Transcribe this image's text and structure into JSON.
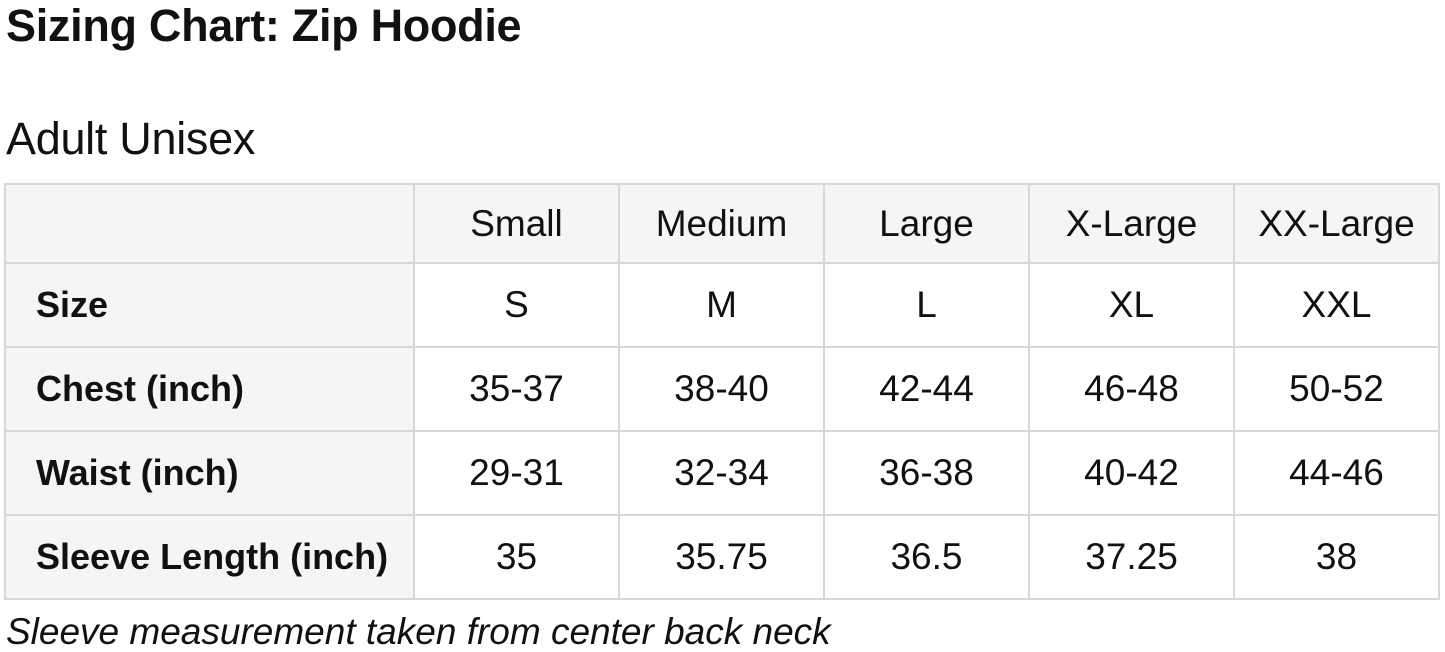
{
  "page": {
    "title": "Sizing Chart: Zip Hoodie",
    "section_title": "Adult Unisex",
    "footnote": "Sleeve measurement taken from center back neck"
  },
  "colors": {
    "page_bg": "#ffffff",
    "text": "#111111",
    "shaded_cell_bg": "#f5f5f5",
    "data_cell_bg": "#ffffff",
    "border": "#d7d7d7"
  },
  "chart_data": {
    "type": "table",
    "title": "Sizing Chart: Zip Hoodie",
    "subtitle": "Adult Unisex",
    "columns": [
      "",
      "Small",
      "Medium",
      "Large",
      "X-Large",
      "XX-Large"
    ],
    "rows": [
      {
        "label": "Size",
        "values": [
          "S",
          "M",
          "L",
          "XL",
          "XXL"
        ]
      },
      {
        "label": "Chest (inch)",
        "values": [
          "35-37",
          "38-40",
          "42-44",
          "46-48",
          "50-52"
        ]
      },
      {
        "label": "Waist (inch)",
        "values": [
          "29-31",
          "32-34",
          "36-38",
          "40-42",
          "44-46"
        ]
      },
      {
        "label": "Sleeve Length (inch)",
        "values": [
          "35",
          "35.75",
          "36.5",
          "37.25",
          "38"
        ]
      }
    ],
    "footnote": "Sleeve measurement taken from center back neck",
    "layout": {
      "header_row_shaded": true,
      "label_column_shaded": true,
      "grid": true
    }
  }
}
